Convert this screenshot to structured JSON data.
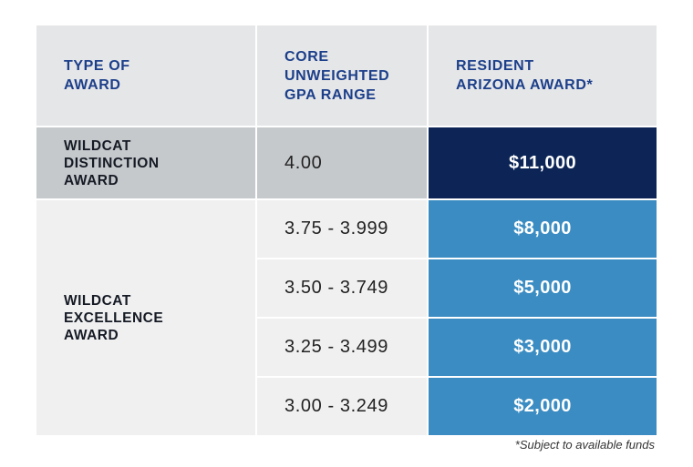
{
  "headers": {
    "type": [
      "TYPE OF",
      "AWARD"
    ],
    "gpa": [
      "CORE",
      "UNWEIGHTED",
      "GPA RANGE"
    ],
    "award": [
      "RESIDENT",
      "ARIZONA AWARD*"
    ]
  },
  "distinction": {
    "label": [
      "WILDCAT",
      "DISTINCTION",
      "AWARD"
    ],
    "gpa": "4.00",
    "amount": "$11,000"
  },
  "excellence": {
    "label": [
      "WILDCAT",
      "EXCELLENCE",
      "AWARD"
    ],
    "rows": [
      {
        "gpa": "3.75 - 3.999",
        "amount": "$8,000"
      },
      {
        "gpa": "3.50 - 3.749",
        "amount": "$5,000"
      },
      {
        "gpa": "3.25 - 3.499",
        "amount": "$3,000"
      },
      {
        "gpa": "3.00 - 3.249",
        "amount": "$2,000"
      }
    ]
  },
  "footnote": "*Subject to available funds",
  "colors": {
    "header_bg": "#e5e6e8",
    "header_text": "#1c3f8a",
    "navy": "#0c2556",
    "blue": "#3a8cc2",
    "grey": "#c6c9cc",
    "light": "#f0f0f1"
  }
}
